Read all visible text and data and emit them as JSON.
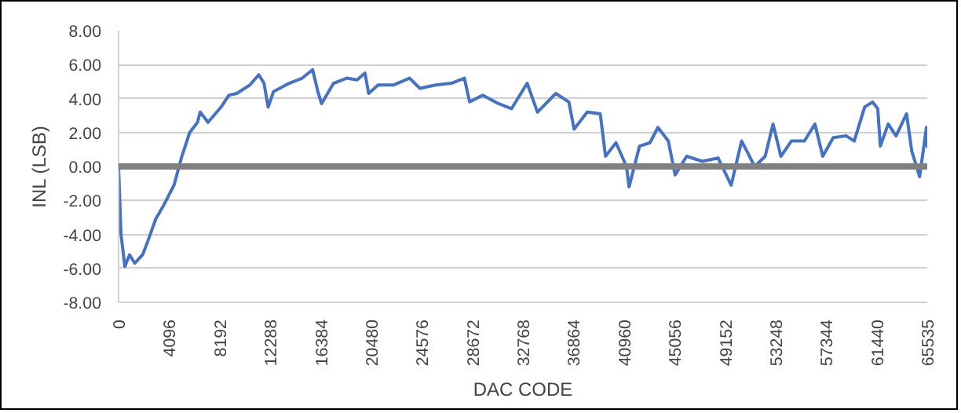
{
  "chart_data": {
    "type": "line",
    "xlabel": "DAC CODE",
    "ylabel": "INL (LSB)",
    "xlim": [
      0,
      65535
    ],
    "xticks": [
      0,
      4096,
      8192,
      12288,
      16384,
      20480,
      24576,
      28672,
      32768,
      36864,
      40960,
      45056,
      49152,
      53248,
      57344,
      61440,
      65535
    ],
    "ylim": [
      -8,
      8
    ],
    "yticks": [
      {
        "value": -8,
        "label": "-8.00"
      },
      {
        "value": -6,
        "label": "-6.00"
      },
      {
        "value": -4,
        "label": "-4.00"
      },
      {
        "value": -2,
        "label": "-2.00"
      },
      {
        "value": 0,
        "label": "0.00"
      },
      {
        "value": 2,
        "label": "2.00"
      },
      {
        "value": 4,
        "label": "4.00"
      },
      {
        "value": 6,
        "label": "6.00"
      },
      {
        "value": 8,
        "label": "8.00"
      }
    ],
    "grid": "y",
    "marker": "none",
    "line_style": "solid",
    "ref_lines": [
      {
        "axis": "y",
        "value": 0,
        "color": "#808080"
      }
    ],
    "x": [
      0,
      200,
      509,
      890,
      1314,
      1950,
      2374,
      3010,
      3646,
      4494,
      5130,
      5766,
      6400,
      6614,
      7250,
      8310,
      8946,
      9582,
      10642,
      11363,
      11787,
      12126,
      12550,
      13822,
      14882,
      15730,
      16154,
      16450,
      17426,
      18486,
      19334,
      19970,
      20267,
      21030,
      22302,
      23574,
      24422,
      25694,
      26966,
      28026,
      28450,
      29510,
      30782,
      31842,
      33114,
      33947,
      35432,
      36493,
      36917,
      37978,
      39038,
      39462,
      40311,
      41159,
      41371,
      42220,
      43068,
      43705,
      44553,
      45105,
      46038,
      47311,
      48584,
      49644,
      50493,
      51554,
      52402,
      53039,
      53675,
      54524,
      55584,
      56433,
      57069,
      57918,
      58979,
      59615,
      60464,
      61100,
      61524,
      61736,
      62373,
      63009,
      63858,
      64282,
      64918,
      65470,
      65535
    ],
    "series": [
      {
        "color": "#4472c4",
        "values": [
          0.0,
          -4.0,
          -5.9,
          -5.2,
          -5.7,
          -5.2,
          -4.4,
          -3.1,
          -2.3,
          -1.1,
          0.6,
          2.0,
          2.6,
          3.2,
          2.6,
          3.5,
          4.2,
          4.3,
          4.8,
          5.4,
          4.9,
          3.5,
          4.4,
          4.9,
          5.2,
          5.7,
          4.4,
          3.7,
          4.9,
          5.2,
          5.1,
          5.5,
          4.3,
          4.8,
          4.8,
          5.2,
          4.6,
          4.8,
          4.9,
          5.2,
          3.8,
          4.2,
          3.7,
          3.4,
          4.9,
          3.2,
          4.3,
          3.8,
          2.2,
          3.2,
          3.1,
          0.6,
          1.4,
          0.0,
          -1.2,
          1.2,
          1.4,
          2.3,
          1.5,
          -0.5,
          0.6,
          0.3,
          0.5,
          -1.1,
          1.5,
          0.0,
          0.6,
          2.5,
          0.6,
          1.5,
          1.5,
          2.5,
          0.6,
          1.7,
          1.8,
          1.5,
          3.5,
          3.8,
          3.4,
          1.2,
          2.5,
          1.8,
          3.1,
          0.9,
          -0.6,
          2.3,
          1.1
        ]
      }
    ]
  }
}
